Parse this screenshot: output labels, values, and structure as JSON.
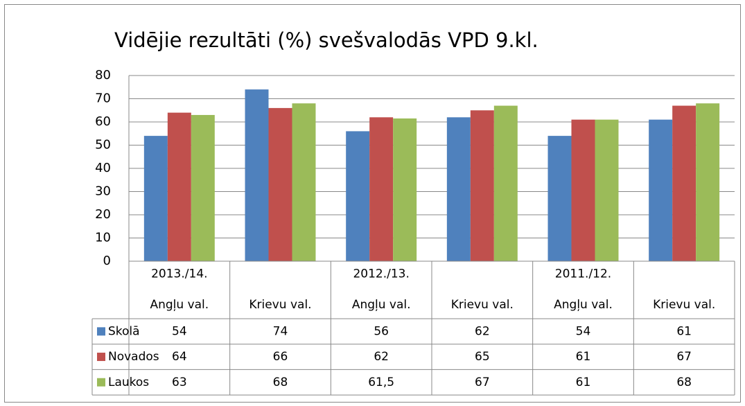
{
  "chart_data": {
    "type": "bar",
    "title": "Vidējie rezultāti (%) svešvalodās VPD 9.kl.",
    "category_groups": [
      "2013./14.",
      "2012./13.",
      "2011./12."
    ],
    "categories": [
      "Angļu val.",
      "Krievu val.",
      "Angļu val.",
      "Krievu val.",
      "Angļu val.",
      "Krievu val."
    ],
    "series": [
      {
        "name": "Skolā",
        "color": "#4f81bd",
        "values": [
          54,
          74,
          56,
          62,
          54,
          61
        ]
      },
      {
        "name": "Novados",
        "color": "#c0504d",
        "values": [
          64,
          66,
          62,
          65,
          61,
          67
        ]
      },
      {
        "name": "Laukos",
        "color": "#9bbb59",
        "values": [
          63,
          68,
          61.5,
          67,
          61,
          68
        ],
        "value_labels": [
          "63",
          "68",
          "61,5",
          "67",
          "61",
          "68"
        ]
      }
    ],
    "ylim": [
      0,
      80
    ],
    "yticks": [
      0,
      10,
      20,
      30,
      40,
      50,
      60,
      70,
      80
    ],
    "grid": true
  }
}
